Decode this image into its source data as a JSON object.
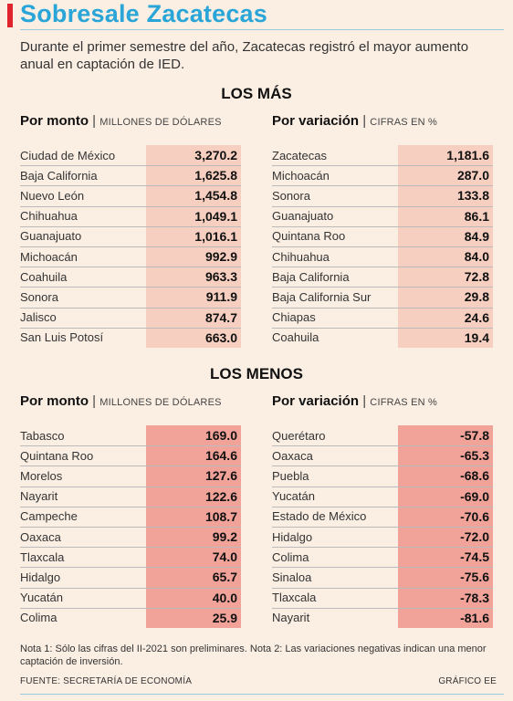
{
  "title": "Sobresale Zacatecas",
  "intro": "Durante el primer semestre del año, Zacatecas registró el mayor aumento anual en captación de IED.",
  "sections": {
    "mas": "LOS MÁS",
    "menos": "LOS MENOS"
  },
  "headers": {
    "monto_label": "Por monto",
    "monto_unit": "MILLONES DE DÓLARES",
    "variacion_label": "Por variación",
    "variacion_unit": "CIFRAS EN %",
    "sep": "|"
  },
  "chart_data": [
    {
      "type": "table",
      "title": "LOS MÁS — Por monto",
      "unit": "MILLONES DE DÓLARES",
      "rows": [
        {
          "name": "Ciudad de México",
          "value": "3,270.2"
        },
        {
          "name": "Baja California",
          "value": "1,625.8"
        },
        {
          "name": "Nuevo León",
          "value": "1,454.8"
        },
        {
          "name": "Chihuahua",
          "value": "1,049.1"
        },
        {
          "name": "Guanajuato",
          "value": "1,016.1"
        },
        {
          "name": "Michoacán",
          "value": "992.9"
        },
        {
          "name": "Coahuila",
          "value": "963.3"
        },
        {
          "name": "Sonora",
          "value": "911.9"
        },
        {
          "name": "Jalisco",
          "value": "874.7"
        },
        {
          "name": "San Luis Potosí",
          "value": "663.0"
        }
      ]
    },
    {
      "type": "table",
      "title": "LOS MÁS — Por variación",
      "unit": "CIFRAS EN %",
      "rows": [
        {
          "name": "Zacatecas",
          "value": "1,181.6"
        },
        {
          "name": "Michoacán",
          "value": "287.0"
        },
        {
          "name": "Sonora",
          "value": "133.8"
        },
        {
          "name": "Guanajuato",
          "value": "86.1"
        },
        {
          "name": "Quintana Roo",
          "value": "84.9"
        },
        {
          "name": "Chihuahua",
          "value": "84.0"
        },
        {
          "name": "Baja California",
          "value": "72.8"
        },
        {
          "name": "Baja California Sur",
          "value": "29.8"
        },
        {
          "name": "Chiapas",
          "value": "24.6"
        },
        {
          "name": "Coahuila",
          "value": "19.4"
        }
      ]
    },
    {
      "type": "table",
      "title": "LOS MENOS — Por monto",
      "unit": "MILLONES DE DÓLARES",
      "rows": [
        {
          "name": "Tabasco",
          "value": "169.0"
        },
        {
          "name": "Quintana Roo",
          "value": "164.6"
        },
        {
          "name": "Morelos",
          "value": "127.6"
        },
        {
          "name": "Nayarit",
          "value": "122.6"
        },
        {
          "name": "Campeche",
          "value": "108.7"
        },
        {
          "name": "Oaxaca",
          "value": "99.2"
        },
        {
          "name": "Tlaxcala",
          "value": "74.0"
        },
        {
          "name": "Hidalgo",
          "value": "65.7"
        },
        {
          "name": "Yucatán",
          "value": "40.0"
        },
        {
          "name": "Colima",
          "value": "25.9"
        }
      ]
    },
    {
      "type": "table",
      "title": "LOS MENOS — Por variación",
      "unit": "CIFRAS EN %",
      "rows": [
        {
          "name": "Querétaro",
          "value": "-57.8"
        },
        {
          "name": "Oaxaca",
          "value": "-65.3"
        },
        {
          "name": "Puebla",
          "value": "-68.6"
        },
        {
          "name": "Yucatán",
          "value": "-69.0"
        },
        {
          "name": "Estado de México",
          "value": "-70.6"
        },
        {
          "name": "Hidalgo",
          "value": "-72.0"
        },
        {
          "name": "Colima",
          "value": "-74.5"
        },
        {
          "name": "Sinaloa",
          "value": "-75.6"
        },
        {
          "name": "Tlaxcala",
          "value": "-78.3"
        },
        {
          "name": "Nayarit",
          "value": "-81.6"
        }
      ]
    }
  ],
  "note": "Nota 1: Sólo las cifras del II-2021 son preliminares. Nota 2: Las variaciones negativas indican una menor captación de inversión.",
  "source": "FUENTE: SECRETARÍA DE ECONOMÍA",
  "credit": "GRÁFICO EE",
  "colors": {
    "background": "#fbefe4",
    "title": "#2aa5d8",
    "accent": "#e0242e",
    "mas_column": "#f6cfc0",
    "menos_column": "#f1a39a"
  }
}
